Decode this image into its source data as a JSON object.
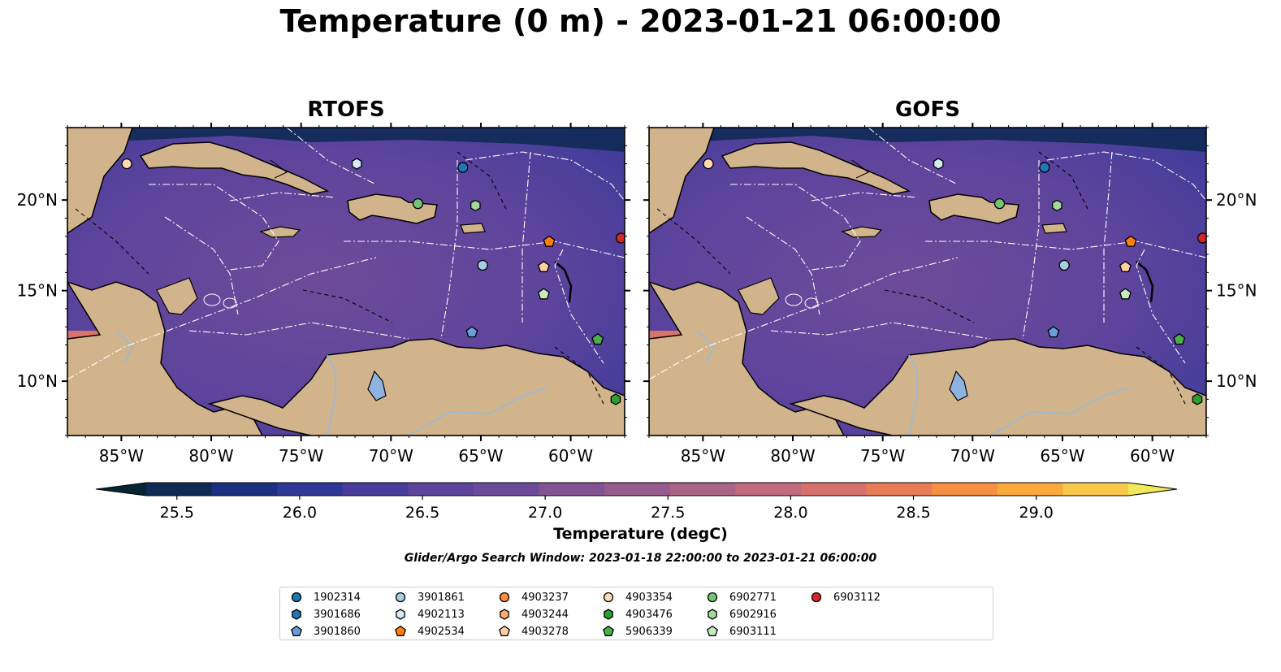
{
  "title": "Temperature (0 m) - 2023-01-21 06:00:00",
  "panels": [
    {
      "title": "RTOFS"
    },
    {
      "title": "GOFS"
    }
  ],
  "axes": {
    "lon_range": [
      -88,
      -57
    ],
    "lat_range": [
      7,
      24
    ],
    "lon_ticks": [
      {
        "value": -85,
        "label": "85°W"
      },
      {
        "value": -80,
        "label": "80°W"
      },
      {
        "value": -75,
        "label": "75°W"
      },
      {
        "value": -70,
        "label": "70°W"
      },
      {
        "value": -65,
        "label": "65°W"
      },
      {
        "value": -60,
        "label": "60°W"
      }
    ],
    "lat_ticks": [
      {
        "value": 20,
        "label": "20°N"
      },
      {
        "value": 15,
        "label": "15°N"
      },
      {
        "value": 10,
        "label": "10°N"
      }
    ]
  },
  "colorbar": {
    "title": "Temperature (degC)",
    "min": 25.375,
    "max": 29.375,
    "step": 0.25,
    "ticks": [
      "25.5",
      "26.0",
      "26.5",
      "27.0",
      "27.5",
      "28.0",
      "28.5",
      "29.0"
    ],
    "colors": [
      "#062435",
      "#0f2a55",
      "#1b3080",
      "#2f3896",
      "#4a3c9c",
      "#5e449c",
      "#6e4b9a",
      "#825493",
      "#975c8e",
      "#ab6386",
      "#c26b7c",
      "#d6716c",
      "#e87d55",
      "#f68f42",
      "#fba83c",
      "#f9c848",
      "#f3e85a"
    ]
  },
  "search_window": "Glider/Argo Search Window: 2023-01-18 22:00:00 to 2023-01-21 06:00:00",
  "floats": [
    {
      "id": "1902314",
      "marker": "circle",
      "color": "#1f77b4",
      "lon": -66.0,
      "lat": 21.8
    },
    {
      "id": "3901686",
      "marker": "hexagon",
      "color": "#1f77b4",
      "lon": null,
      "lat": null
    },
    {
      "id": "3901860",
      "marker": "pentagon",
      "color": "#6a9ed8",
      "lon": -65.5,
      "lat": 12.7
    },
    {
      "id": "3901861",
      "marker": "circle",
      "color": "#a6cee3",
      "lon": -64.9,
      "lat": 16.4
    },
    {
      "id": "4902113",
      "marker": "hexagon",
      "color": "#d6e9f8",
      "lon": -71.9,
      "lat": 22.0
    },
    {
      "id": "4902534",
      "marker": "pentagon",
      "color": "#ff7f0e",
      "lon": -61.2,
      "lat": 17.7
    },
    {
      "id": "4903237",
      "marker": "circle",
      "color": "#fd8d3c",
      "lon": null,
      "lat": null
    },
    {
      "id": "4903244",
      "marker": "hexagon",
      "color": "#fdae6b",
      "lon": null,
      "lat": null
    },
    {
      "id": "4903278",
      "marker": "pentagon",
      "color": "#fdd0a2",
      "lon": -61.5,
      "lat": 16.3
    },
    {
      "id": "4903354",
      "marker": "circle",
      "color": "#fdd9b5",
      "lon": -84.7,
      "lat": 22.0
    },
    {
      "id": "4903476",
      "marker": "hexagon",
      "color": "#2ca02c",
      "lon": -57.5,
      "lat": 9.0
    },
    {
      "id": "5906339",
      "marker": "pentagon",
      "color": "#4daf4a",
      "lon": -58.5,
      "lat": 12.3
    },
    {
      "id": "6902771",
      "marker": "circle",
      "color": "#74c476",
      "lon": -68.5,
      "lat": 19.8
    },
    {
      "id": "6902916",
      "marker": "hexagon",
      "color": "#a1d99b",
      "lon": -65.3,
      "lat": 19.7
    },
    {
      "id": "6903111",
      "marker": "pentagon",
      "color": "#c7e9c0",
      "lon": -61.5,
      "lat": 14.8
    },
    {
      "id": "6903112",
      "marker": "circle",
      "color": "#d62728",
      "lon": -57.2,
      "lat": 17.9
    }
  ],
  "land_color": "#d2b48c",
  "river_color": "#a0b8cc"
}
